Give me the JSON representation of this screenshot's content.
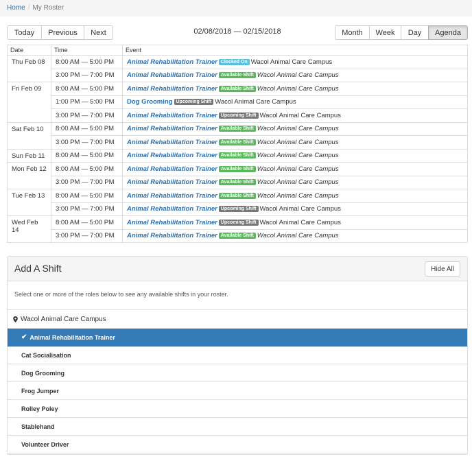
{
  "breadcrumb": {
    "home": "Home",
    "separator": "/",
    "current": "My Roster"
  },
  "nav": {
    "today": "Today",
    "previous": "Previous",
    "next": "Next"
  },
  "date_range": "02/08/2018 — 02/15/2018",
  "views": {
    "month": "Month",
    "week": "Week",
    "day": "Day",
    "agenda": "Agenda",
    "active": "Agenda"
  },
  "agenda": {
    "headers": {
      "date": "Date",
      "time": "Time",
      "event": "Event"
    },
    "days": [
      {
        "date": "Thu Feb 08",
        "rows": [
          {
            "time": "8:00 AM — 5:00 PM",
            "title": "Animal Rehabilitation Trainer",
            "badge": "Clocked On",
            "badge_color": "blue",
            "location": "Wacol Animal Care Campus"
          },
          {
            "time": "3:00 PM — 7:00 PM",
            "title": "Animal Rehabilitation Trainer",
            "badge": "Available Shift",
            "badge_color": "green",
            "location": "Wacol Animal Care Campus"
          }
        ]
      },
      {
        "date": "Fri Feb 09",
        "rows": [
          {
            "time": "8:00 AM — 5:00 PM",
            "title": "Animal Rehabilitation Trainer",
            "badge": "Available Shift",
            "badge_color": "green",
            "location": "Wacol Animal Care Campus"
          },
          {
            "time": "1:00 PM — 5:00 PM",
            "title": "Dog Grooming",
            "badge": "Upcoming Shift",
            "badge_color": "grey",
            "location": "Wacol Animal Care Campus"
          },
          {
            "time": "3:00 PM — 7:00 PM",
            "title": "Animal Rehabilitation Trainer",
            "badge": "Upcoming Shift",
            "badge_color": "grey",
            "location": "Wacol Animal Care Campus"
          }
        ]
      },
      {
        "date": "Sat Feb 10",
        "rows": [
          {
            "time": "8:00 AM — 5:00 PM",
            "title": "Animal Rehabilitation Trainer",
            "badge": "Available Shift",
            "badge_color": "green",
            "location": "Wacol Animal Care Campus"
          },
          {
            "time": "3:00 PM — 7:00 PM",
            "title": "Animal Rehabilitation Trainer",
            "badge": "Available Shift",
            "badge_color": "green",
            "location": "Wacol Animal Care Campus"
          }
        ]
      },
      {
        "date": "Sun Feb 11",
        "rows": [
          {
            "time": "8:00 AM — 5:00 PM",
            "title": "Animal Rehabilitation Trainer",
            "badge": "Available Shift",
            "badge_color": "green",
            "location": "Wacol Animal Care Campus"
          }
        ]
      },
      {
        "date": "Mon Feb 12",
        "rows": [
          {
            "time": "8:00 AM — 5:00 PM",
            "title": "Animal Rehabilitation Trainer",
            "badge": "Available Shift",
            "badge_color": "green",
            "location": "Wacol Animal Care Campus"
          },
          {
            "time": "3:00 PM — 7:00 PM",
            "title": "Animal Rehabilitation Trainer",
            "badge": "Available Shift",
            "badge_color": "green",
            "location": "Wacol Animal Care Campus"
          }
        ]
      },
      {
        "date": "Tue Feb 13",
        "rows": [
          {
            "time": "8:00 AM — 5:00 PM",
            "title": "Animal Rehabilitation Trainer",
            "badge": "Available Shift",
            "badge_color": "green",
            "location": "Wacol Animal Care Campus"
          },
          {
            "time": "3:00 PM — 7:00 PM",
            "title": "Animal Rehabilitation Trainer",
            "badge": "Upcoming Shift",
            "badge_color": "grey",
            "location": "Wacol Animal Care Campus"
          }
        ]
      },
      {
        "date": "Wed Feb 14",
        "rows": [
          {
            "time": "8:00 AM — 5:00 PM",
            "title": "Animal Rehabilitation Trainer",
            "badge": "Upcoming Shift",
            "badge_color": "grey",
            "location": "Wacol Animal Care Campus"
          },
          {
            "time": "3:00 PM — 7:00 PM",
            "title": "Animal Rehabilitation Trainer",
            "badge": "Available Shift",
            "badge_color": "green",
            "location": "Wacol Animal Care Campus"
          }
        ]
      }
    ]
  },
  "add_shift": {
    "title": "Add A Shift",
    "hide_label": "Hide All",
    "note": "Select one or more of the roles below to see any available shifts in your roster.",
    "campus": "Wacol Animal Care Campus",
    "campus_icon": "map-marker-icon",
    "roles": [
      {
        "label": "Animal Rehabilitation Trainer",
        "selected": true
      },
      {
        "label": "Cat Socialisation",
        "selected": false
      },
      {
        "label": "Dog Grooming",
        "selected": false
      },
      {
        "label": "Frog Jumper",
        "selected": false
      },
      {
        "label": "Rolley Poley",
        "selected": false
      },
      {
        "label": "Stablehand",
        "selected": false
      },
      {
        "label": "Volunteer Driver",
        "selected": false
      }
    ]
  },
  "colors": {
    "link": "#2a6fb0",
    "selected_role_bg": "#337ab7",
    "badge_available": "#5cb85c",
    "badge_clocked_on": "#5bc0de",
    "badge_upcoming": "#777777"
  }
}
